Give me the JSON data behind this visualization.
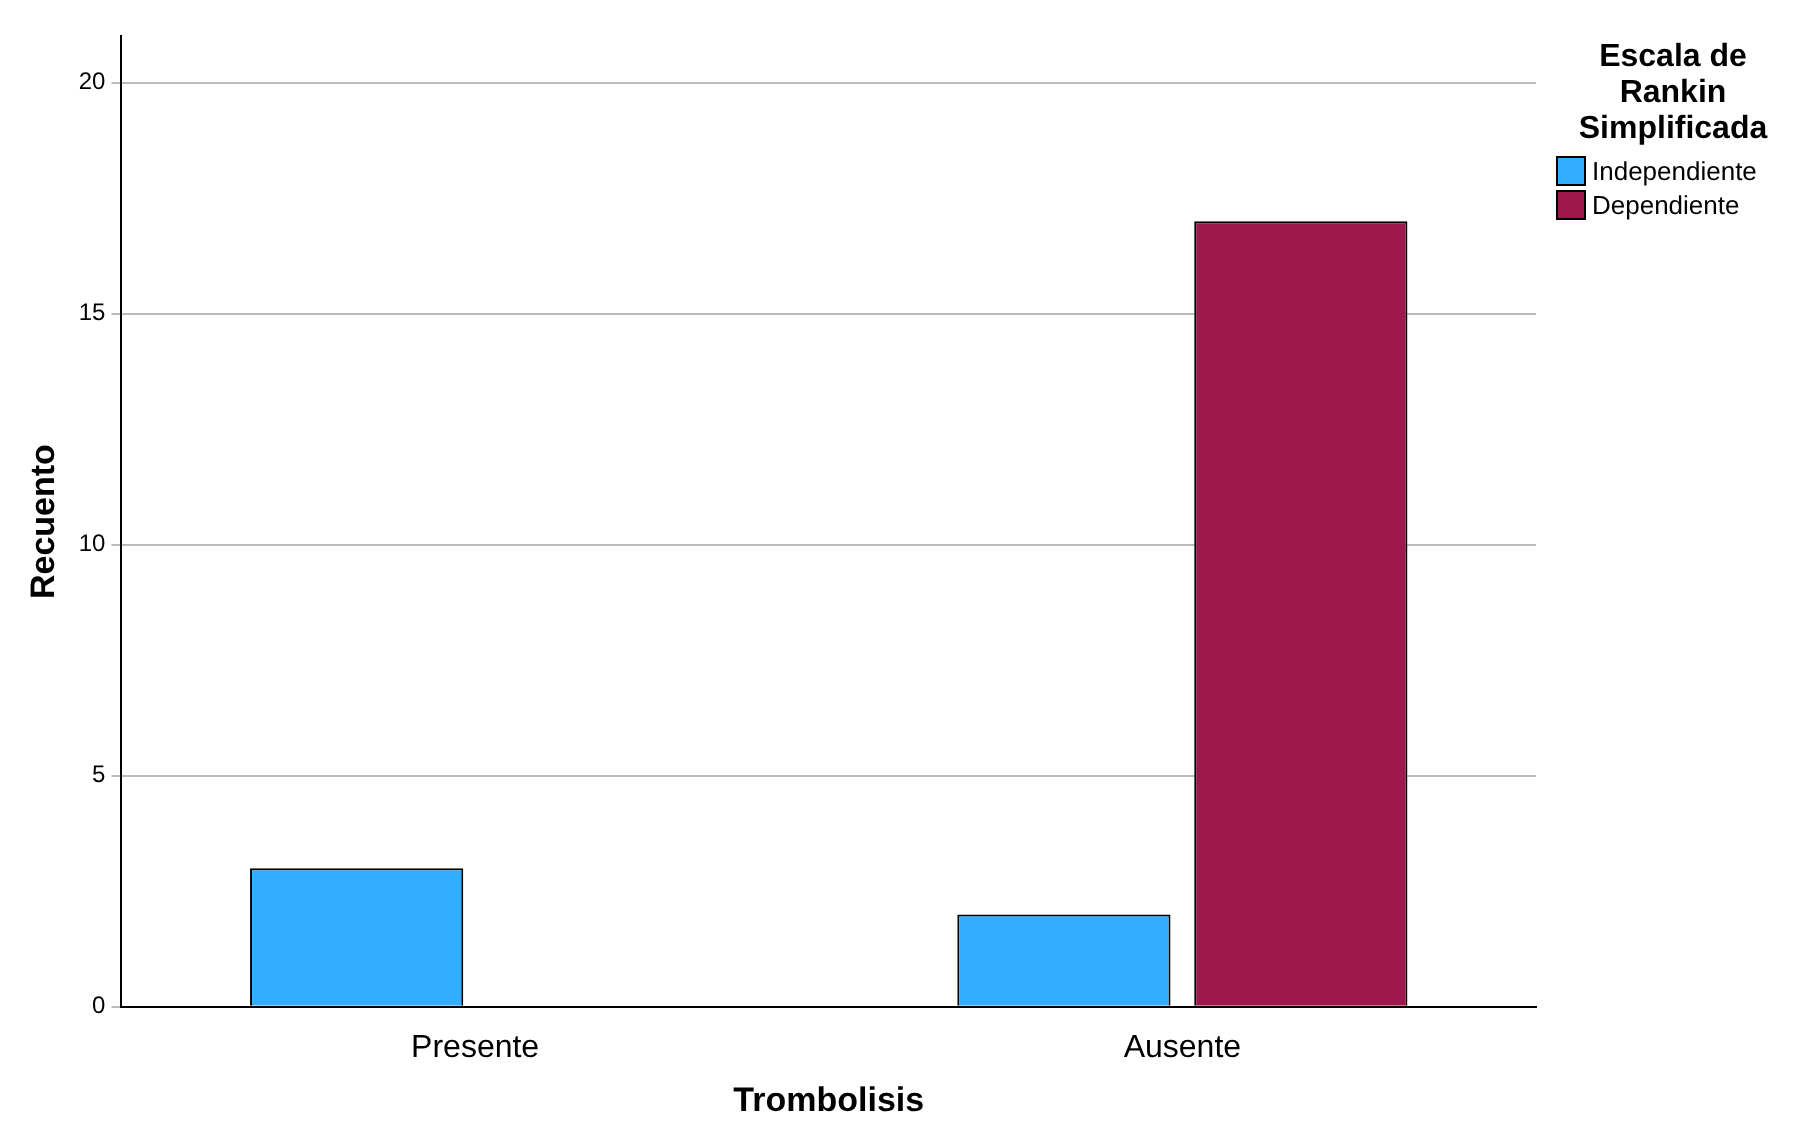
{
  "chart_data": {
    "type": "bar",
    "xlabel": "Trombolisis",
    "ylabel": "Recuento",
    "legend_title": "Escala de Rankin Simplificada",
    "categories": [
      "Presente",
      "Ausente"
    ],
    "series": [
      {
        "name": "Independiente",
        "color": "#33adff",
        "values": [
          3,
          2
        ]
      },
      {
        "name": "Dependiente",
        "color": "#a0174e",
        "values": [
          0,
          17
        ]
      }
    ],
    "ylim": [
      0,
      21
    ],
    "yticks": [
      0,
      5,
      10,
      15,
      20
    ],
    "grid": "y",
    "legend": "top right"
  }
}
